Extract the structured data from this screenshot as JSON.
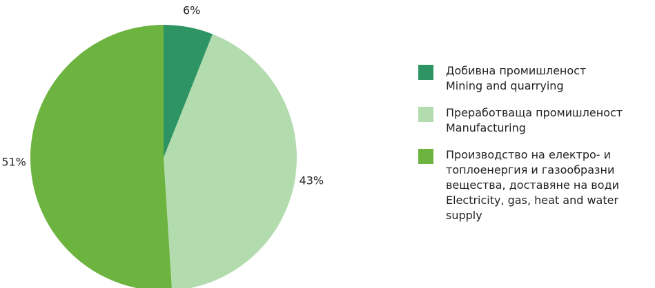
{
  "chart_data": {
    "type": "pie",
    "categories": [
      "Добивна промишленост\nMining and quarrying",
      "Преработваща  промишленост\nManufacturing",
      "Производство на електро- и\nтоплоенергия и газообразни\nвещества, доставяне на води\nElectricity, gas, heat and water\nsupply"
    ],
    "values": [
      6,
      43,
      51
    ],
    "value_labels": [
      "6%",
      "43%",
      "51%"
    ],
    "colors": [
      "#2e9464",
      "#b3dcae",
      "#6db33f"
    ]
  }
}
